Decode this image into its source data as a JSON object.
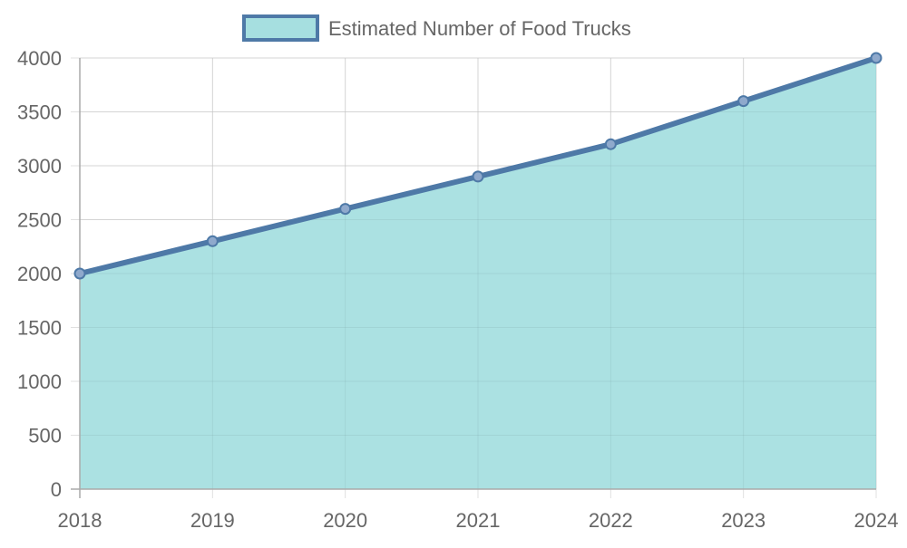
{
  "chart_data": {
    "type": "area",
    "title": "",
    "categories": [
      "2018",
      "2019",
      "2020",
      "2021",
      "2022",
      "2023",
      "2024"
    ],
    "series": [
      {
        "name": "Estimated Number of Food Trucks",
        "values": [
          2000,
          2300,
          2600,
          2900,
          3200,
          3600,
          4000
        ],
        "line_color": "#4e79a7",
        "fill_color": "#a6dfe0"
      }
    ],
    "xlabel": "",
    "ylabel": "",
    "ylim": [
      0,
      4000
    ],
    "yticks": [
      0,
      500,
      1000,
      1500,
      2000,
      2500,
      3000,
      3500,
      4000
    ],
    "grid": true,
    "legend_position": "top"
  },
  "legend": {
    "label": "Estimated Number of Food Trucks"
  }
}
